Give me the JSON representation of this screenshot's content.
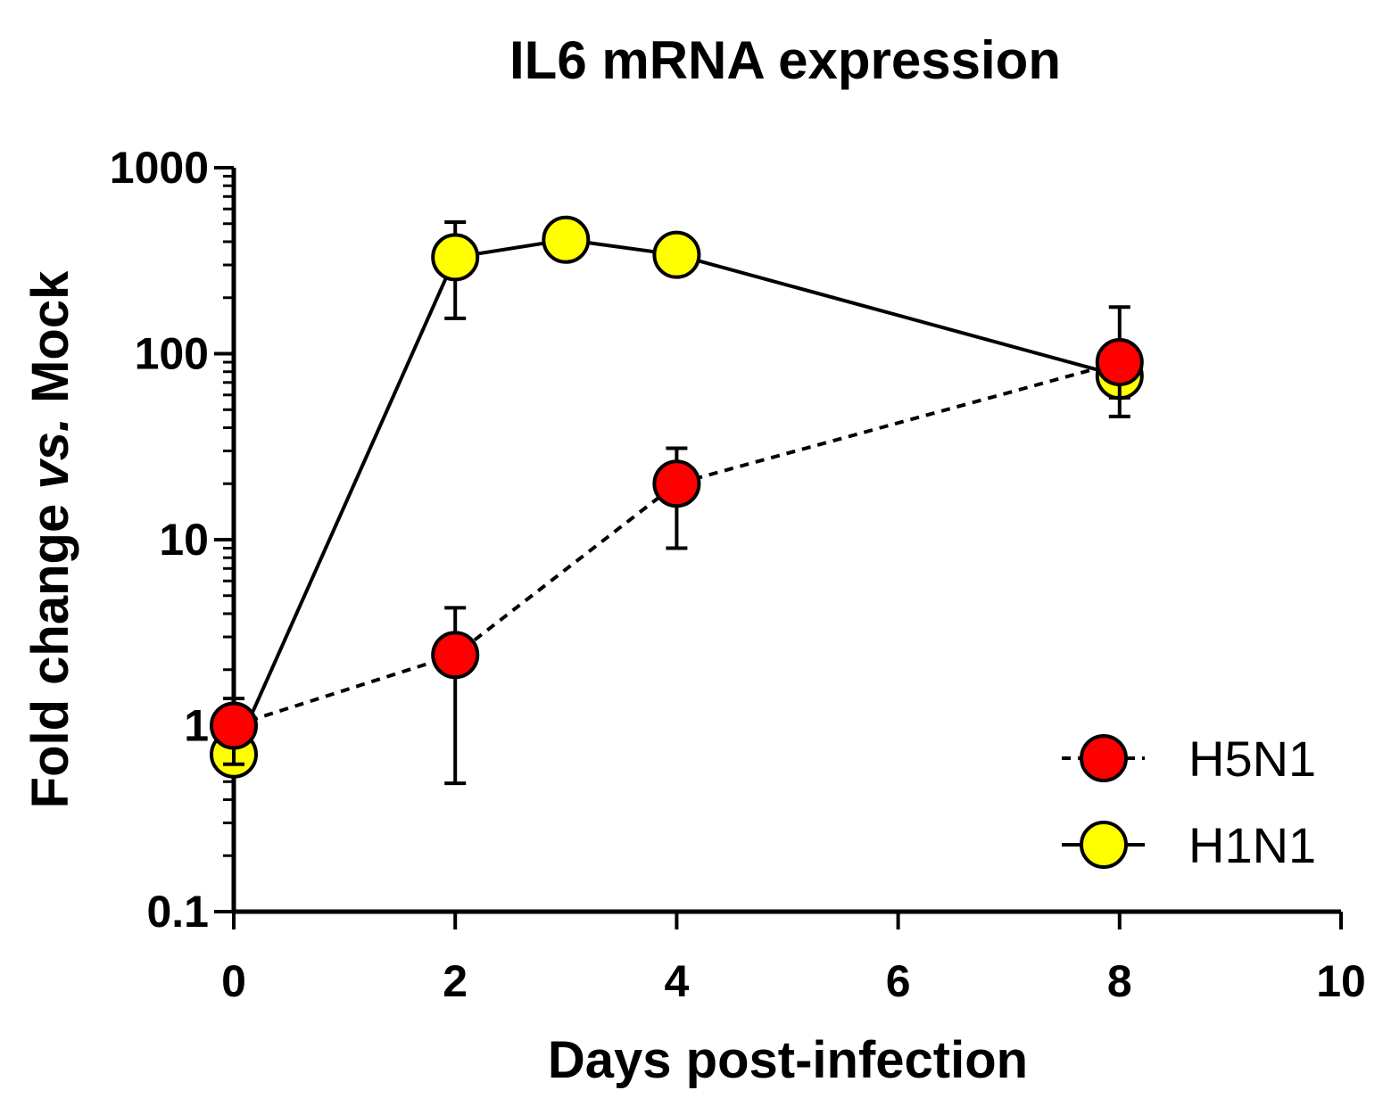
{
  "chart_data": {
    "type": "line",
    "title": "IL6 mRNA expression",
    "xlabel": "Days post-infection",
    "ylabel_prefix": "Fold change ",
    "ylabel_italic": "vs.",
    "ylabel_suffix": " Mock",
    "xlim": [
      0,
      10
    ],
    "ylim": [
      0.1,
      1000
    ],
    "yscale": "log",
    "xticks": [
      0,
      2,
      4,
      6,
      8,
      10
    ],
    "xtick_labels": [
      "0",
      "2",
      "4",
      "6",
      "8",
      "10"
    ],
    "yticks": [
      0.1,
      1,
      10,
      100,
      1000
    ],
    "ytick_labels": [
      "0.1",
      "1",
      "10",
      "100",
      "1000"
    ],
    "legend_position": "bottom-right",
    "series": [
      {
        "name": "H5N1",
        "color": "#ff0000",
        "line_style": "dashed",
        "x": [
          0,
          2,
          4,
          8
        ],
        "y": [
          1.0,
          2.4,
          20,
          90
        ],
        "err_upper": [
          1.4,
          4.3,
          31,
          178
        ],
        "err_lower": [
          0.62,
          0.49,
          9,
          58
        ]
      },
      {
        "name": "H1N1",
        "color": "#ffff00",
        "line_style": "solid",
        "x": [
          0,
          2,
          3,
          4,
          8
        ],
        "y": [
          0.7,
          330,
          410,
          340,
          76
        ],
        "err_upper": [
          0.82,
          510,
          null,
          null,
          96
        ],
        "err_lower": [
          0.58,
          155,
          null,
          null,
          46
        ]
      }
    ]
  }
}
